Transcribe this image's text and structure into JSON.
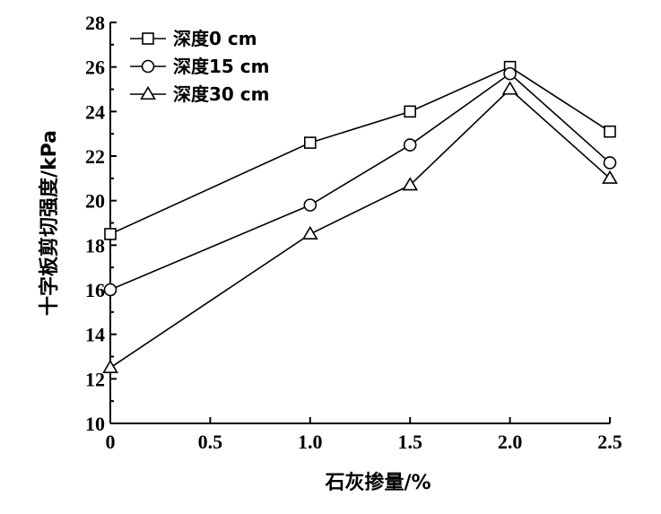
{
  "chart_data": {
    "type": "line",
    "x": [
      0,
      1.0,
      1.5,
      2.0,
      2.5
    ],
    "xlabel": "石灰掺量/%",
    "ylabel": "十字板剪切强度/kPa",
    "xlim": [
      0,
      2.5
    ],
    "ylim": [
      10,
      28
    ],
    "xticks": [
      "0",
      "0.5",
      "1.0",
      "1.5",
      "2.0",
      "2.5"
    ],
    "yticks": [
      "10",
      "12",
      "14",
      "16",
      "18",
      "20",
      "22",
      "24",
      "26",
      "28"
    ],
    "grid": false,
    "legend_position": "top-left",
    "series": [
      {
        "name": "深度0 cm",
        "marker": "square",
        "values": [
          18.5,
          22.6,
          24.0,
          26.0,
          23.1
        ]
      },
      {
        "name": "深度15 cm",
        "marker": "circle",
        "values": [
          16.0,
          19.8,
          22.5,
          25.7,
          21.7
        ]
      },
      {
        "name": "深度30 cm",
        "marker": "triangle",
        "values": [
          12.5,
          18.5,
          20.7,
          25.0,
          21.0
        ]
      }
    ]
  }
}
